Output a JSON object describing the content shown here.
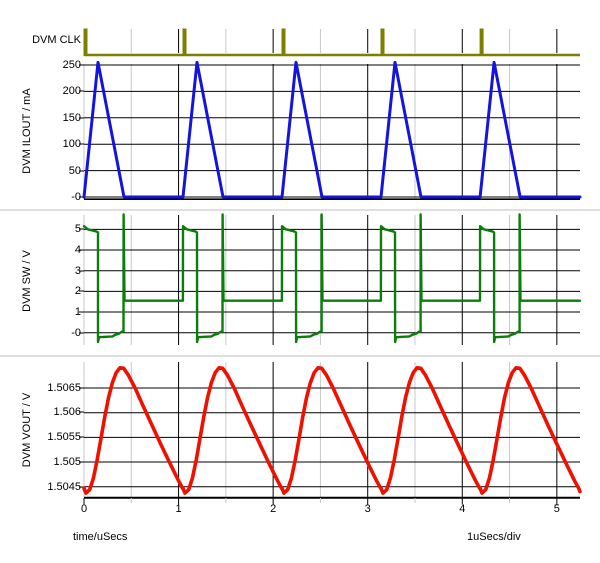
{
  "window": {
    "background": "#ffffff"
  },
  "colors": {
    "clk_trace": "#7E7E00",
    "ilout_trace": "#1414DC",
    "sw_trace": "#0A7D0A",
    "vout_trace": "#EE1100",
    "grid_major": "#000000",
    "grid_minor": "#C8C8C8",
    "panel_separator": "#C0C0C0",
    "axis_text": "#000000"
  },
  "panels": [
    {
      "id": "clk",
      "label": "DVM CLK",
      "ytick_labels": []
    },
    {
      "id": "ilout",
      "label": "DVM ILOUT / mA",
      "ytick_labels": [
        "250",
        "200",
        "150",
        "100",
        "50",
        "-0"
      ]
    },
    {
      "id": "sw",
      "label": "DVM SW / V",
      "ytick_labels": [
        "5",
        "4",
        "3",
        "2",
        "1",
        "-0"
      ]
    },
    {
      "id": "vout",
      "label": "DVM VOUT / V",
      "ytick_labels": [
        "1.5065",
        "1.506",
        "1.5055",
        "1.505",
        "1.5045"
      ]
    }
  ],
  "xaxis": {
    "tick_labels": [
      "0",
      "1",
      "2",
      "3",
      "4",
      "5"
    ],
    "label": "time/uSecs",
    "scale_label": "1uSecs/div"
  },
  "chart_data": [
    {
      "type": "digital",
      "name": "DVM CLK",
      "x_unit": "uSecs",
      "low": 0,
      "high": 1,
      "pulse_times": [
        0,
        1.047,
        2.094,
        3.141,
        4.188
      ],
      "pulse_width": 0.042,
      "end_time": 5.245
    },
    {
      "type": "line",
      "name": "DVM ILOUT",
      "unit": "mA",
      "ylim": [
        0,
        250
      ],
      "ytick_values": [
        250,
        200,
        150,
        100,
        50,
        0
      ],
      "period": 1.047,
      "cycle_starts": [
        0,
        1.047,
        2.094,
        3.141,
        4.188
      ],
      "cycle_points": [
        [
          0,
          0
        ],
        [
          0.148,
          255
        ],
        [
          0.423,
          0
        ],
        [
          1.047,
          0
        ]
      ],
      "end_time": 5.245,
      "end_value": 0
    },
    {
      "type": "line",
      "name": "DVM SW",
      "unit": "V",
      "ylim": [
        -0.5,
        5.75
      ],
      "ytick_values": [
        5,
        4,
        3,
        2,
        1,
        0
      ],
      "period": 1.047,
      "cycle_starts": [
        0,
        1.047,
        2.094,
        3.141,
        4.188
      ],
      "cycle_points": [
        [
          0,
          5.15
        ],
        [
          0.04,
          5.0
        ],
        [
          0.13,
          4.9
        ],
        [
          0.148,
          4.85
        ],
        [
          0.1485,
          -0.45
        ],
        [
          0.16,
          -0.22
        ],
        [
          0.3,
          -0.18
        ],
        [
          0.33,
          -0.1
        ],
        [
          0.37,
          -0.05
        ],
        [
          0.4,
          0.05
        ],
        [
          0.418,
          0.05
        ],
        [
          0.4185,
          5.72
        ],
        [
          0.428,
          1.55
        ],
        [
          1.046,
          1.55
        ]
      ],
      "end_time": 5.245,
      "end_value": 1.55
    },
    {
      "type": "line",
      "name": "DVM VOUT",
      "unit": "V",
      "ylim": [
        1.5043,
        1.5071
      ],
      "ytick_values": [
        1.5065,
        1.506,
        1.5055,
        1.505,
        1.5045
      ],
      "period": 1.047,
      "cycle_starts": [
        0,
        1.047,
        2.094,
        3.141,
        4.188
      ],
      "cycle_points": [
        [
          0,
          1.50447
        ],
        [
          0.02,
          1.50437
        ],
        [
          0.06,
          1.50444
        ],
        [
          0.1,
          1.50468
        ],
        [
          0.14,
          1.50505
        ],
        [
          0.18,
          1.50548
        ],
        [
          0.22,
          1.50592
        ],
        [
          0.26,
          1.50631
        ],
        [
          0.3,
          1.50661
        ],
        [
          0.34,
          1.50681
        ],
        [
          0.38,
          1.50691
        ],
        [
          0.42,
          1.5069
        ],
        [
          0.47,
          1.50676
        ],
        [
          0.54,
          1.5065
        ],
        [
          0.62,
          1.50616
        ],
        [
          0.72,
          1.50574
        ],
        [
          0.82,
          1.50533
        ],
        [
          0.92,
          1.50493
        ],
        [
          1.0,
          1.50462
        ],
        [
          1.045,
          1.50446
        ]
      ],
      "end_time": 5.245,
      "end_value": 1.5044
    }
  ]
}
